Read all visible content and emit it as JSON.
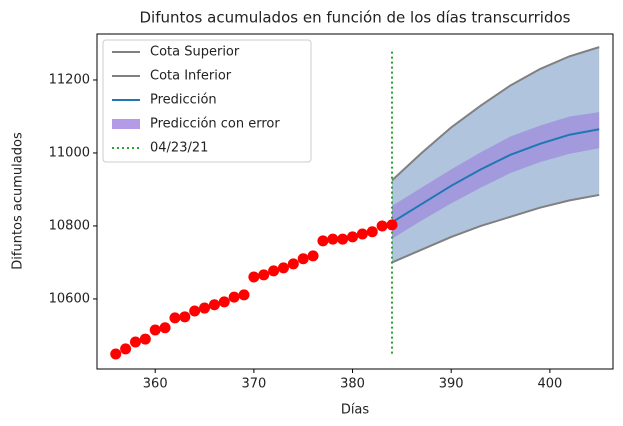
{
  "chart_data": {
    "type": "line",
    "title": "Difuntos acumulados en función de los días transcurridos",
    "x_label": "Días",
    "y_label": "Difuntos acumulados",
    "xlim": [
      354.1,
      406.4
    ],
    "ylim": [
      10408,
      11326
    ],
    "xticks": [
      360,
      370,
      380,
      390,
      400
    ],
    "yticks": [
      10600,
      10800,
      11000,
      11200
    ],
    "fill_color": "#b0c4de",
    "points": {
      "color": "#ff0000",
      "x": [
        356,
        357,
        358,
        359,
        360,
        361,
        362,
        363,
        364,
        365,
        366,
        367,
        368,
        369,
        370,
        371,
        372,
        373,
        374,
        375,
        376,
        377,
        378,
        379,
        380,
        381,
        382,
        383,
        384
      ],
      "values": [
        10449,
        10463,
        10482,
        10490,
        10515,
        10521,
        10548,
        10551,
        10567,
        10575,
        10584,
        10592,
        10605,
        10611,
        10660,
        10666,
        10677,
        10685,
        10696,
        10710,
        10718,
        10759,
        10764,
        10764,
        10770,
        10778,
        10784,
        10800,
        10803
      ]
    },
    "series": [
      {
        "name": "Cota Superior",
        "color": "#808080",
        "x": [
          384,
          387,
          390,
          393,
          396,
          399,
          402,
          405
        ],
        "values": [
          10925,
          11000,
          11070,
          11130,
          11185,
          11230,
          11265,
          11290
        ]
      },
      {
        "name": "Cota Inferior",
        "color": "#808080",
        "x": [
          384,
          387,
          390,
          393,
          396,
          399,
          402,
          405
        ],
        "values": [
          10700,
          10735,
          10770,
          10800,
          10825,
          10850,
          10870,
          10885
        ]
      },
      {
        "name": "Predicción",
        "color": "#1f77b4",
        "x": [
          384,
          387,
          390,
          393,
          396,
          399,
          402,
          405
        ],
        "values": [
          10810,
          10860,
          10910,
          10955,
          10995,
          11025,
          11050,
          11065
        ]
      }
    ],
    "band": {
      "name": "Predicción con error",
      "color": "#9370db",
      "x": [
        384,
        387,
        390,
        393,
        396,
        399,
        402,
        405
      ],
      "low": [
        10765,
        10815,
        10862,
        10905,
        10945,
        10975,
        10998,
        11013
      ],
      "high": [
        10855,
        10905,
        10955,
        11002,
        11045,
        11075,
        11100,
        11112
      ]
    },
    "vline": {
      "name": "04/23/21",
      "color": "#2ca02c",
      "x": 384,
      "y_range": [
        10450,
        11285
      ]
    }
  }
}
